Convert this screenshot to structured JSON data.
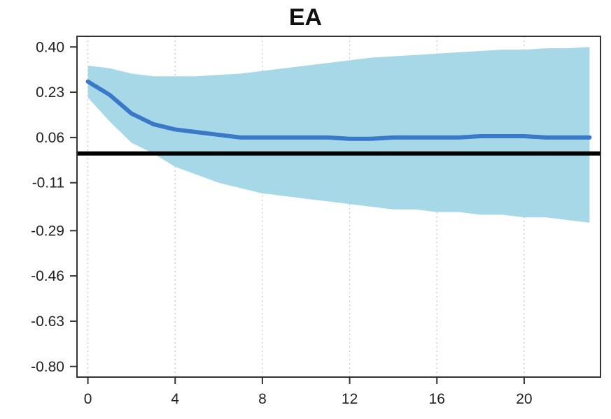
{
  "chart_data": {
    "type": "line",
    "title": "EA",
    "xlabel": "",
    "ylabel": "",
    "x_ticks": [
      0,
      4,
      8,
      12,
      16,
      20
    ],
    "y_ticks": [
      0.4,
      0.23,
      0.06,
      -0.11,
      -0.29,
      -0.46,
      -0.63,
      -0.8
    ],
    "y_tick_labels": [
      "0.40",
      "0.23",
      "0.06",
      "-0.11",
      "-0.29",
      "-0.46",
      "-0.63",
      "-0.80"
    ],
    "xlim": [
      -0.5,
      23.5
    ],
    "ylim": [
      -0.84,
      0.44
    ],
    "grid": "vertical dotted",
    "zero_line": 0,
    "series": [
      {
        "x": [
          0,
          1,
          2,
          3,
          4,
          5,
          6,
          7,
          8,
          9,
          10,
          11,
          12,
          13,
          14,
          15,
          16,
          17,
          18,
          19,
          20,
          21,
          22,
          23
        ],
        "values": [
          0.27,
          0.22,
          0.15,
          0.11,
          0.09,
          0.08,
          0.07,
          0.06,
          0.06,
          0.06,
          0.06,
          0.06,
          0.055,
          0.055,
          0.06,
          0.06,
          0.06,
          0.06,
          0.065,
          0.065,
          0.065,
          0.06,
          0.06,
          0.06
        ],
        "color": "#3a78c8"
      }
    ],
    "band": {
      "upper": [
        0.33,
        0.32,
        0.3,
        0.29,
        0.29,
        0.29,
        0.295,
        0.3,
        0.31,
        0.32,
        0.33,
        0.34,
        0.35,
        0.36,
        0.365,
        0.37,
        0.375,
        0.38,
        0.385,
        0.39,
        0.39,
        0.395,
        0.395,
        0.4
      ],
      "lower": [
        0.21,
        0.12,
        0.04,
        0.0,
        -0.05,
        -0.08,
        -0.11,
        -0.13,
        -0.15,
        -0.16,
        -0.17,
        -0.18,
        -0.19,
        -0.2,
        -0.21,
        -0.21,
        -0.22,
        -0.22,
        -0.23,
        -0.23,
        -0.24,
        -0.24,
        -0.25,
        -0.26
      ],
      "color": "#a6d8e8"
    }
  }
}
